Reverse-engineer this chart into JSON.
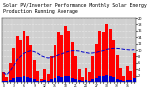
{
  "title": "Solar PV/Inverter Performance Monthly Solar Energy Production Running Average",
  "bar_values": [
    3.0,
    1.5,
    6.0,
    10.5,
    14.5,
    13.0,
    16.0,
    14.5,
    11.5,
    7.0,
    3.5,
    1.0,
    4.0,
    2.5,
    8.0,
    11.5,
    15.5,
    14.8,
    17.5,
    16.0,
    12.5,
    8.0,
    4.2,
    1.5,
    4.5,
    3.0,
    8.2,
    12.0,
    16.0,
    15.5,
    18.0,
    16.5,
    13.0,
    8.5,
    4.5,
    1.8,
    5.0,
    3.5,
    9.0
  ],
  "running_avg": [
    3.0,
    2.2,
    3.5,
    5.0,
    7.0,
    8.0,
    9.0,
    9.5,
    9.8,
    9.5,
    9.0,
    8.2,
    7.8,
    7.5,
    7.7,
    8.0,
    8.5,
    8.8,
    9.3,
    9.6,
    9.8,
    9.8,
    9.7,
    9.4,
    9.2,
    9.0,
    9.1,
    9.3,
    9.6,
    9.8,
    10.2,
    10.4,
    10.5,
    10.5,
    10.4,
    10.2,
    10.1,
    10.0,
    10.1
  ],
  "small_bar_values": [
    0.4,
    0.2,
    0.7,
    1.1,
    1.7,
    1.5,
    1.8,
    1.7,
    1.3,
    0.8,
    0.4,
    0.2,
    0.5,
    0.3,
    0.9,
    1.3,
    1.8,
    1.7,
    2.0,
    1.8,
    1.4,
    0.9,
    0.5,
    0.2,
    0.6,
    0.4,
    1.0,
    1.4,
    1.9,
    1.8,
    2.1,
    2.0,
    1.6,
    1.0,
    0.6,
    0.2,
    0.7,
    0.5,
    1.1
  ],
  "bar_color": "#ff0000",
  "small_bar_color": "#0000cc",
  "avg_line_color": "#0000cc",
  "bg_color": "#ffffff",
  "plot_bg_color": "#d0d0d0",
  "ylim": [
    0,
    20
  ],
  "ytick_values": [
    2,
    4,
    6,
    8,
    10,
    12,
    14,
    16,
    18,
    20
  ],
  "n_bars": 39,
  "title_fontsize": 3.5,
  "xlabel_fontsize": 2.2,
  "ylabel_fontsize": 2.5
}
